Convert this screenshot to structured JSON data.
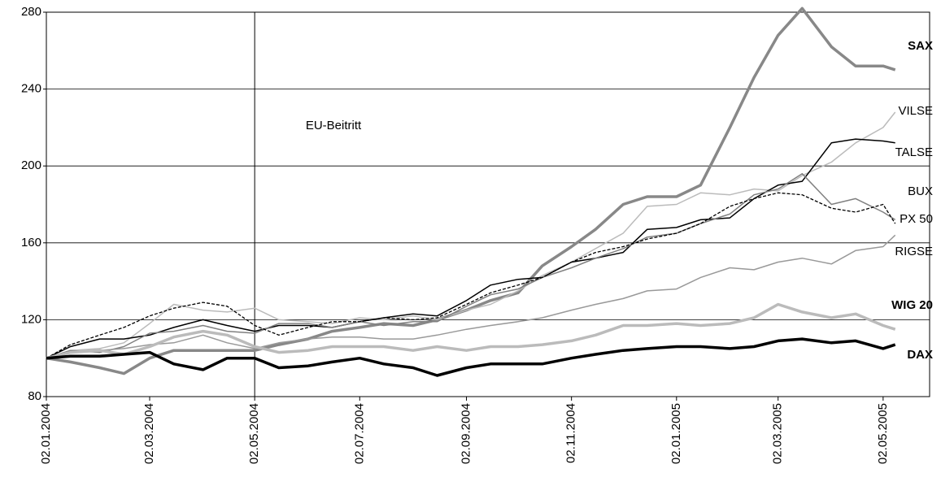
{
  "chart_data": {
    "type": "line",
    "annotation": "EU-Beitritt",
    "event_date": "02.05.2004",
    "x": [
      "02.01.2004",
      "16.01.2004",
      "02.02.2004",
      "16.02.2004",
      "02.03.2004",
      "16.03.2004",
      "02.04.2004",
      "16.04.2004",
      "02.05.2004",
      "16.05.2004",
      "02.06.2004",
      "16.06.2004",
      "02.07.2004",
      "16.07.2004",
      "02.08.2004",
      "16.08.2004",
      "02.09.2004",
      "16.09.2004",
      "02.10.2004",
      "16.10.2004",
      "02.11.2004",
      "16.11.2004",
      "02.12.2004",
      "16.12.2004",
      "02.01.2005",
      "16.01.2005",
      "02.02.2005",
      "16.02.2005",
      "02.03.2005",
      "16.03.2005",
      "02.04.2005",
      "16.04.2005",
      "02.05.2005",
      "09.05.2005"
    ],
    "xlim": [
      "02.01.2004",
      "29.05.2005"
    ],
    "xticks": [
      "02.01.2004",
      "02.03.2004",
      "02.05.2004",
      "02.07.2004",
      "02.09.2004",
      "02.11.2004",
      "02.01.2005",
      "02.03.2005",
      "02.05.2005"
    ],
    "ylim": [
      80,
      280
    ],
    "yticks": [
      80,
      120,
      160,
      200,
      240,
      280
    ],
    "grid": true,
    "series": [
      {
        "name": "SAX",
        "color": "#888888",
        "width": 3.5,
        "bold": true,
        "values": [
          100,
          98,
          95,
          92,
          100,
          104,
          104,
          104,
          104,
          107,
          110,
          114,
          116,
          118,
          117,
          120,
          125,
          130,
          134,
          148,
          158,
          167,
          180,
          184,
          184,
          190,
          220,
          246,
          268,
          282,
          262,
          252,
          252,
          250
        ]
      },
      {
        "name": "VILSE",
        "color": "#bbbbbb",
        "width": 1.5,
        "values": [
          100,
          104,
          105,
          108,
          118,
          128,
          125,
          124,
          126,
          120,
          119,
          118,
          121,
          120,
          122,
          120,
          125,
          128,
          135,
          143,
          150,
          157,
          165,
          179,
          180,
          186,
          185,
          188,
          187,
          195,
          202,
          212,
          220,
          228
        ]
      },
      {
        "name": "TALSE",
        "color": "#000000",
        "width": 1.5,
        "values": [
          100,
          106,
          110,
          110,
          112,
          116,
          120,
          117,
          114,
          117,
          117,
          116,
          119,
          121,
          123,
          122,
          130,
          138,
          141,
          142,
          150,
          152,
          155,
          167,
          168,
          172,
          173,
          183,
          190,
          192,
          212,
          214,
          213,
          212
        ]
      },
      {
        "name": "BUX",
        "color": "#808080",
        "width": 1.5,
        "values": [
          100,
          104,
          103,
          106,
          113,
          114,
          117,
          114,
          113,
          118,
          118,
          116,
          119,
          117,
          119,
          119,
          127,
          133,
          136,
          142,
          147,
          152,
          157,
          163,
          165,
          170,
          175,
          185,
          188,
          196,
          180,
          183,
          176,
          172
        ]
      },
      {
        "name": "PX 50",
        "color": "#000000",
        "width": 1.3,
        "dash": "4,2",
        "values": [
          100,
          107,
          112,
          116,
          122,
          126,
          129,
          127,
          117,
          112,
          116,
          119,
          119,
          121,
          120,
          121,
          128,
          134,
          138,
          142,
          150,
          155,
          158,
          162,
          165,
          170,
          179,
          183,
          186,
          185,
          178,
          176,
          180,
          170
        ]
      },
      {
        "name": "RIGSE",
        "color": "#999999",
        "width": 1.5,
        "values": [
          100,
          103,
          104,
          105,
          107,
          108,
          112,
          108,
          105,
          108,
          110,
          111,
          111,
          110,
          110,
          112,
          115,
          117,
          119,
          121,
          125,
          128,
          131,
          135,
          136,
          142,
          147,
          146,
          150,
          152,
          149,
          156,
          158,
          164
        ]
      },
      {
        "name": "WIG 20",
        "color": "#bbbbbb",
        "width": 3.5,
        "bold": true,
        "values": [
          100,
          103,
          104,
          102,
          106,
          111,
          114,
          112,
          106,
          103,
          104,
          106,
          106,
          106,
          104,
          106,
          104,
          106,
          106,
          107,
          109,
          112,
          117,
          117,
          118,
          117,
          118,
          121,
          128,
          124,
          121,
          123,
          117,
          115
        ]
      },
      {
        "name": "DAX",
        "color": "#000000",
        "width": 3.5,
        "bold": true,
        "values": [
          100,
          101,
          101,
          102,
          103,
          97,
          94,
          100,
          100,
          95,
          96,
          98,
          100,
          97,
          95,
          91,
          95,
          97,
          97,
          97,
          100,
          102,
          104,
          105,
          106,
          106,
          105,
          106,
          109,
          110,
          108,
          109,
          105,
          107
        ]
      }
    ]
  }
}
